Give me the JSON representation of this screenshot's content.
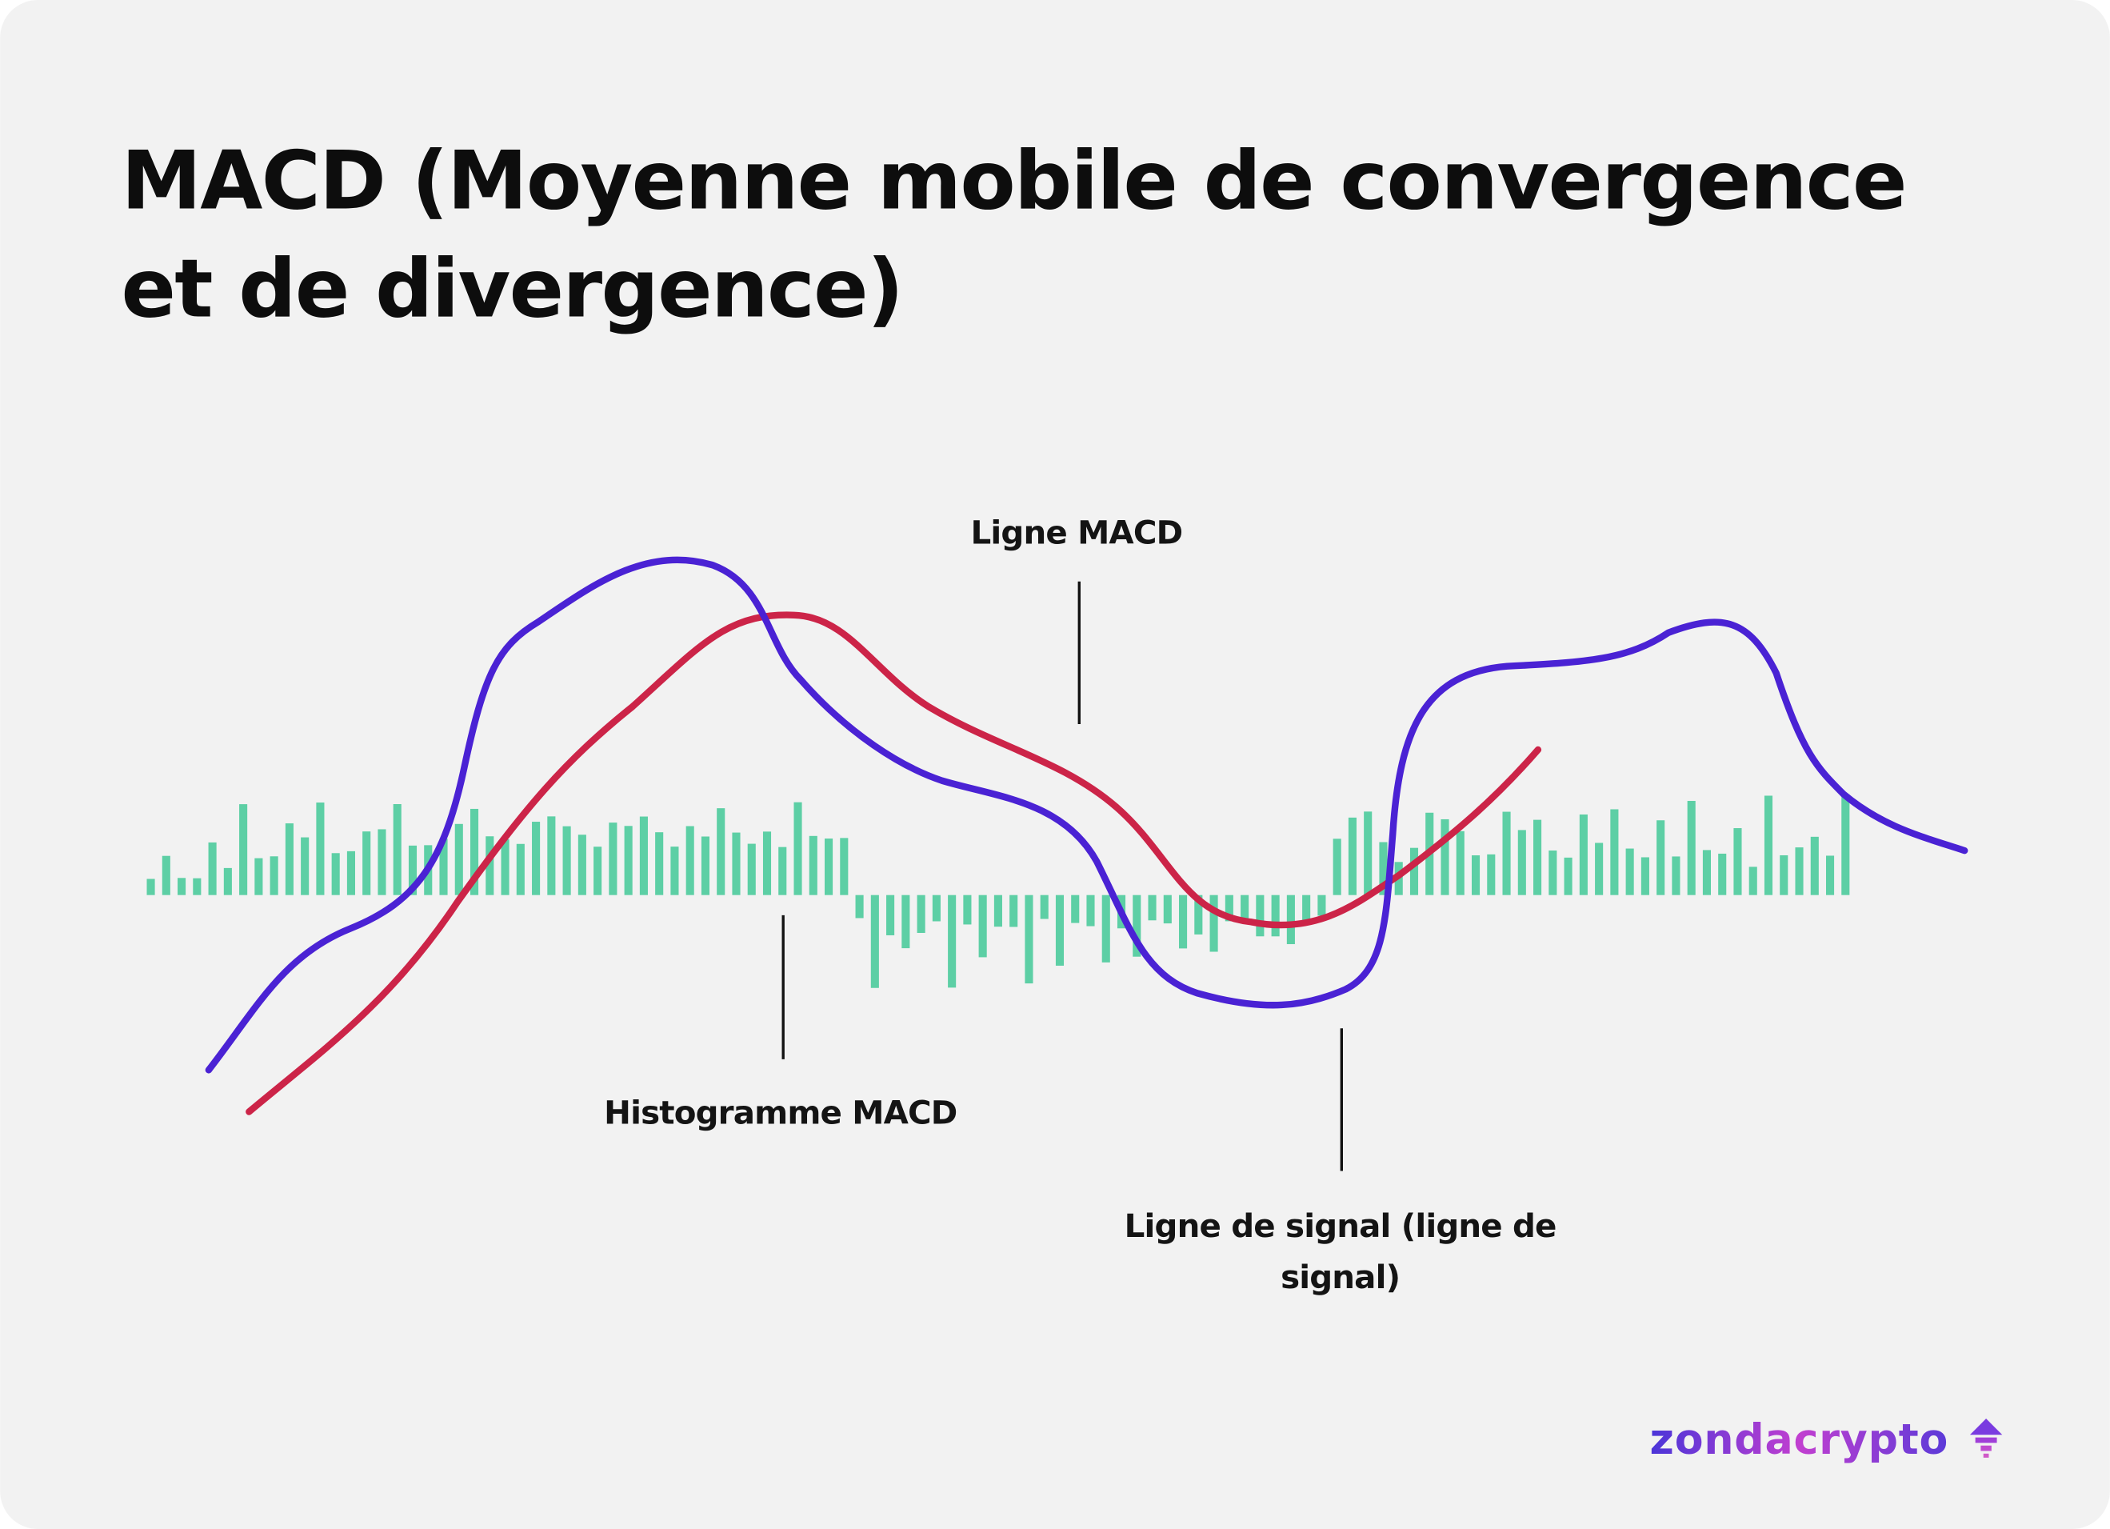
{
  "header": {
    "title_lines": [
      "MACD (Moyenne mobile de convergence",
      "et de divergence)"
    ]
  },
  "labels": {
    "macd_line": "Ligne MACD",
    "histogram": "Histogramme MACD",
    "signal_line": [
      "Ligne de signal (ligne de",
      "signal)"
    ]
  },
  "logo": "zondacrypto"
}
